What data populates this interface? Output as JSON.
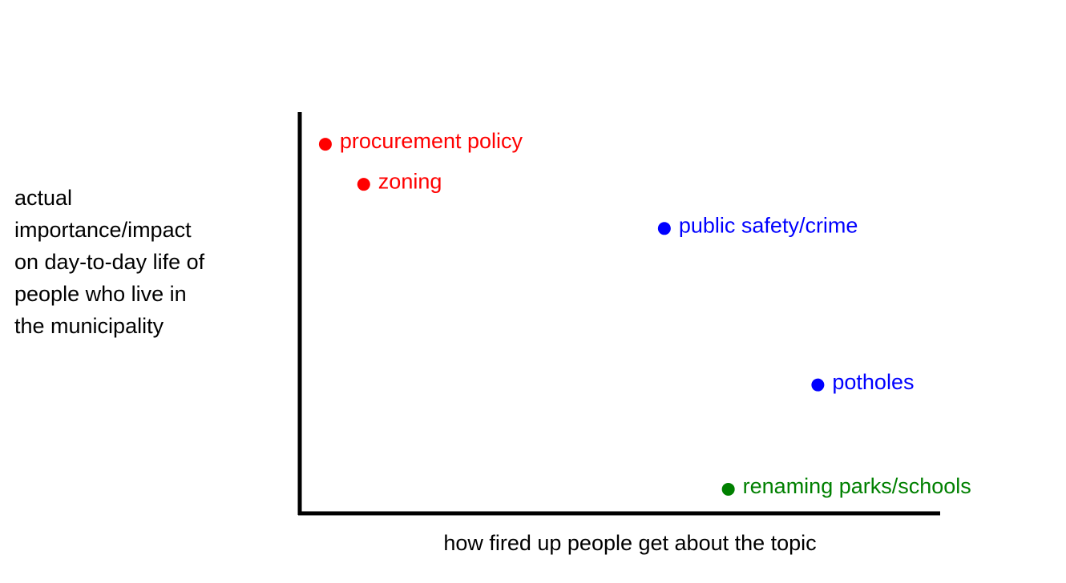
{
  "chart_data": {
    "type": "scatter",
    "x_label": "how fired up people get about the topic",
    "y_label_lines": [
      "actual",
      "importance/impact",
      "on day-to-day life of",
      "people who live in",
      "the municipality"
    ],
    "labels": [
      "procurement policy",
      "zoning",
      "public safety/crime",
      "potholes",
      "renaming parks/schools"
    ],
    "x": [
      4,
      10,
      57,
      81,
      67
    ],
    "values": [
      92,
      82,
      71,
      32,
      6
    ],
    "colors": [
      "#ff0000",
      "#ff0000",
      "#0000ff",
      "#0000ff",
      "#008000"
    ],
    "xlim": [
      0,
      100
    ],
    "ylim": [
      0,
      100
    ]
  }
}
